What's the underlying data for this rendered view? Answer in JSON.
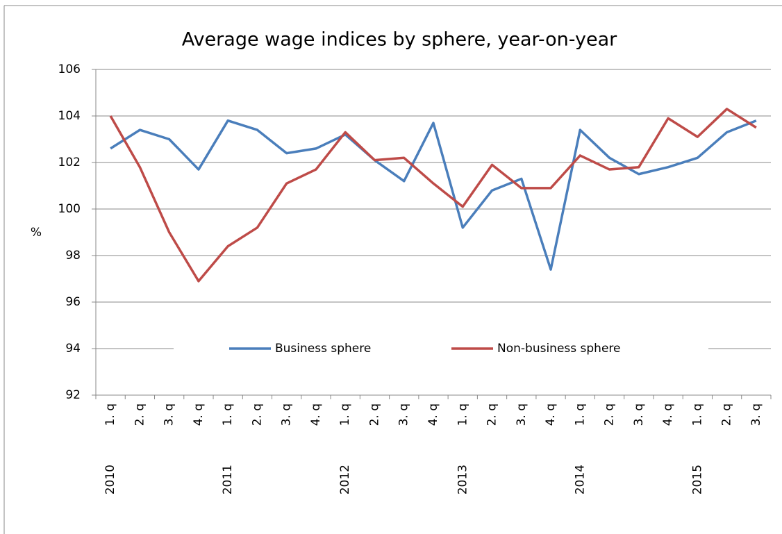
{
  "chart_data": {
    "type": "line",
    "title": "Average wage indices by sphere, year-on-year",
    "y_label": "%",
    "categories": [
      "1. q",
      "2. q",
      "3. q",
      "4. q",
      "1. q",
      "2. q",
      "3. q",
      "4. q",
      "1. q",
      "2. q",
      "3. q",
      "4. q",
      "1. q",
      "2. q",
      "3. q",
      "4. q",
      "1. q",
      "2. q",
      "3. q",
      "4. q",
      "1. q",
      "2. q",
      "3. q"
    ],
    "category_groups": [
      "2010",
      "2011",
      "2012",
      "2013",
      "2014",
      "2015"
    ],
    "series": [
      {
        "name": "Business sphere",
        "color": "#4a7ebb",
        "values": [
          102.6,
          103.4,
          103.0,
          101.7,
          103.8,
          103.4,
          102.4,
          102.6,
          103.2,
          102.1,
          101.2,
          103.7,
          99.2,
          100.8,
          101.3,
          97.4,
          103.4,
          102.2,
          101.5,
          101.8,
          102.2,
          103.3,
          103.8
        ]
      },
      {
        "name": "Non-business sphere",
        "color": "#be4b48",
        "values": [
          104.0,
          101.8,
          99.0,
          96.9,
          98.4,
          99.2,
          101.1,
          101.7,
          103.3,
          102.1,
          102.2,
          101.1,
          100.1,
          101.9,
          100.9,
          100.9,
          102.3,
          101.7,
          101.8,
          103.9,
          103.1,
          104.3,
          103.5
        ]
      }
    ],
    "ylim": [
      92,
      106
    ],
    "yticks": [
      92,
      94,
      96,
      98,
      100,
      102,
      104,
      106
    ],
    "grid": true,
    "legend": "inside-bottom"
  }
}
